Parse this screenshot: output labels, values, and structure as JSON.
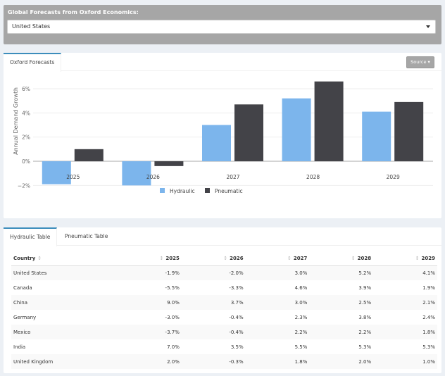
{
  "filter": {
    "label": "Global Forecasts from Oxford Economics:",
    "selected": "United States"
  },
  "chart_panel": {
    "tab": "Oxford Forecasts",
    "source_button": "Source"
  },
  "chart_data": {
    "type": "bar",
    "categories": [
      "2025",
      "2026",
      "2027",
      "2028",
      "2029"
    ],
    "series": [
      {
        "name": "Hydraulic",
        "color": "#7cb5ec",
        "values": [
          -1.9,
          -2.0,
          3.0,
          5.2,
          4.1
        ]
      },
      {
        "name": "Pneumatic",
        "color": "#434348",
        "values": [
          1.0,
          -0.4,
          4.7,
          6.6,
          4.9
        ]
      }
    ],
    "ylabel": "Annual Demand Growth",
    "yticks": [
      "6%",
      "4%",
      "2%",
      "0%",
      "−2%"
    ],
    "ytick_values": [
      6,
      4,
      2,
      0,
      -2
    ],
    "ylim": [
      -2,
      6.3
    ],
    "legend": "bottom-center",
    "grid": true
  },
  "table_panel": {
    "tabs": [
      "Hydraulic Table",
      "Pneumatic Table"
    ],
    "columns": [
      "Country",
      "2025",
      "2026",
      "2027",
      "2028",
      "2029"
    ],
    "rows": [
      [
        "United States",
        "-1.9%",
        "-2.0%",
        "3.0%",
        "5.2%",
        "4.1%"
      ],
      [
        "Canada",
        "-5.5%",
        "-3.3%",
        "4.6%",
        "3.9%",
        "1.9%"
      ],
      [
        "China",
        "9.0%",
        "3.7%",
        "3.0%",
        "2.5%",
        "2.1%"
      ],
      [
        "Germany",
        "-3.0%",
        "-0.4%",
        "2.3%",
        "3.8%",
        "2.4%"
      ],
      [
        "Mexico",
        "-3.7%",
        "-0.4%",
        "2.2%",
        "2.2%",
        "1.8%"
      ],
      [
        "India",
        "7.0%",
        "3.5%",
        "5.5%",
        "5.3%",
        "5.3%"
      ],
      [
        "United Kingdom",
        "2.0%",
        "-0.3%",
        "1.8%",
        "2.0%",
        "1.0%"
      ]
    ]
  }
}
